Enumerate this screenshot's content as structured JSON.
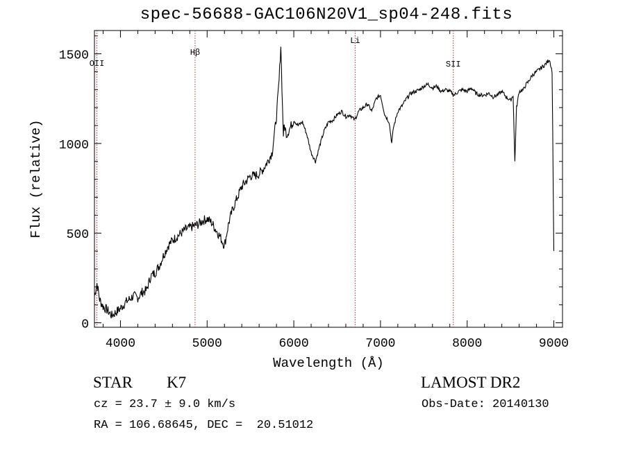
{
  "chart_data": {
    "type": "line",
    "title": "spec-56688-GAC106N20V1_sp04-248.fits",
    "xlabel": "Wavelength (Å)",
    "ylabel": "Flux (relative)",
    "xlim": [
      3700,
      9100
    ],
    "ylim": [
      -25,
      1630
    ],
    "xticks": [
      4000,
      5000,
      6000,
      7000,
      8000,
      9000
    ],
    "yticks": [
      0,
      500,
      1000,
      1500
    ],
    "grid": false,
    "series": [
      {
        "x": [
          3700,
          3730,
          3760,
          3800,
          3850,
          3900,
          3950,
          4000,
          4050,
          4100,
          4150,
          4200,
          4250,
          4300,
          4350,
          4400,
          4450,
          4500,
          4550,
          4600,
          4650,
          4700,
          4750,
          4800,
          4850,
          4900,
          4950,
          5000,
          5050,
          5100,
          5150,
          5200,
          5250,
          5300,
          5350,
          5400,
          5450,
          5500,
          5550,
          5600,
          5650,
          5700,
          5750,
          5800,
          5830,
          5850,
          5870,
          5880,
          5890,
          5900,
          5920,
          5950,
          6000,
          6050,
          6100,
          6150,
          6200,
          6250,
          6300,
          6350,
          6400,
          6450,
          6500,
          6550,
          6600,
          6650,
          6700,
          6750,
          6800,
          6850,
          6900,
          6950,
          7000,
          7050,
          7100,
          7130,
          7150,
          7200,
          7250,
          7300,
          7350,
          7400,
          7450,
          7500,
          7550,
          7600,
          7650,
          7700,
          7750,
          7800,
          7850,
          7900,
          7950,
          8000,
          8050,
          8100,
          8150,
          8200,
          8250,
          8300,
          8350,
          8400,
          8450,
          8500,
          8530,
          8550,
          8570,
          8600,
          8650,
          8680,
          8700,
          8750,
          8800,
          8850,
          8900,
          8950,
          8980,
          9000
        ],
        "y": [
          150,
          220,
          130,
          90,
          70,
          40,
          60,
          80,
          110,
          130,
          150,
          140,
          170,
          180,
          260,
          280,
          320,
          380,
          430,
          460,
          480,
          500,
          520,
          530,
          540,
          550,
          570,
          580,
          560,
          520,
          480,
          430,
          560,
          640,
          700,
          760,
          790,
          820,
          820,
          830,
          860,
          900,
          950,
          1150,
          1350,
          1550,
          1200,
          1050,
          1100,
          1080,
          1050,
          1080,
          1130,
          1100,
          1120,
          1050,
          950,
          900,
          990,
          1070,
          1120,
          1130,
          1160,
          1180,
          1150,
          1160,
          1130,
          1180,
          1200,
          1220,
          1180,
          1250,
          1270,
          1160,
          1120,
          1000,
          1090,
          1180,
          1210,
          1250,
          1280,
          1290,
          1300,
          1320,
          1330,
          1310,
          1320,
          1290,
          1300,
          1290,
          1270,
          1290,
          1300,
          1290,
          1310,
          1280,
          1270,
          1270,
          1280,
          1260,
          1270,
          1290,
          1260,
          1240,
          1270,
          900,
          1200,
          1290,
          1300,
          1330,
          1340,
          1380,
          1400,
          1420,
          1440,
          1470,
          1400,
          400
        ]
      }
    ],
    "lines": [
      {
        "label": "OII",
        "x": 3728
      },
      {
        "label": "Hβ",
        "x": 4861
      },
      {
        "label": "Li",
        "x": 6708
      },
      {
        "label": "SII",
        "x": 7840
      }
    ]
  },
  "info": {
    "object_class": "STAR",
    "subclass": "K7",
    "survey": "LAMOST DR2",
    "redshift": "cz = 23.7 ± 9.0 km/s",
    "obs_date": "Obs-Date: 20140130",
    "coords": "RA = 106.68645, DEC =  20.51012"
  },
  "colors": {
    "line_marker": "#b03030",
    "spectrum": "#000000"
  }
}
